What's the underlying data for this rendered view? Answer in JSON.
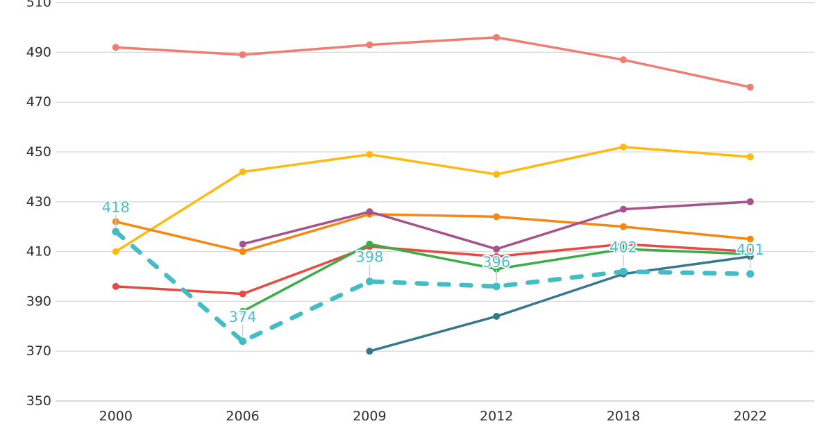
{
  "chart_data": {
    "type": "line",
    "title": "",
    "categories": [
      "2000",
      "2006",
      "2009",
      "2012",
      "2018",
      "2022"
    ],
    "y_axis": {
      "min": 350,
      "max": 510,
      "step": 20,
      "tick_labels": [
        "350",
        "370",
        "390",
        "410",
        "430",
        "450",
        "470",
        "490",
        "510"
      ]
    },
    "grid": true,
    "legend_position": "none",
    "series": [
      {
        "name": "salmon-line",
        "color": "#ee7d74",
        "dashed": false,
        "labeled": false,
        "values": [
          492,
          489,
          493,
          496,
          487,
          476
        ]
      },
      {
        "name": "gold-line",
        "color": "#fcba12",
        "dashed": false,
        "labeled": false,
        "values": [
          410,
          442,
          449,
          441,
          452,
          448
        ]
      },
      {
        "name": "orange-line",
        "color": "#f68712",
        "dashed": false,
        "labeled": false,
        "values": [
          422,
          410,
          425,
          424,
          420,
          415
        ]
      },
      {
        "name": "purple-line",
        "color": "#a4538c",
        "dashed": false,
        "labeled": false,
        "values": [
          null,
          413,
          426,
          411,
          427,
          430
        ]
      },
      {
        "name": "red-line",
        "color": "#e64a42",
        "dashed": false,
        "labeled": false,
        "values": [
          396,
          393,
          412,
          408,
          413,
          410
        ]
      },
      {
        "name": "green-line",
        "color": "#3aad49",
        "dashed": false,
        "labeled": false,
        "values": [
          null,
          386,
          413,
          403,
          411,
          409
        ]
      },
      {
        "name": "steelblue-line",
        "color": "#36798d",
        "dashed": false,
        "labeled": false,
        "values": [
          null,
          null,
          370,
          384,
          401,
          408
        ]
      },
      {
        "name": "teal-dashed-line",
        "color": "#43bcc6",
        "dashed": true,
        "labeled": true,
        "label_color": "#4bbfca",
        "values": [
          418,
          374,
          398,
          396,
          402,
          401
        ],
        "point_labels": [
          "418",
          "374",
          "398",
          "396",
          "402",
          "401"
        ]
      }
    ],
    "style": {
      "background": "#ffffff",
      "gridline_color": "#d9d9d9",
      "axis_line_color": "#c2c2c2",
      "tick_text_color": "#303030",
      "leader_line_color": "#cccccc",
      "label_halo_color": "#ffffff"
    }
  }
}
